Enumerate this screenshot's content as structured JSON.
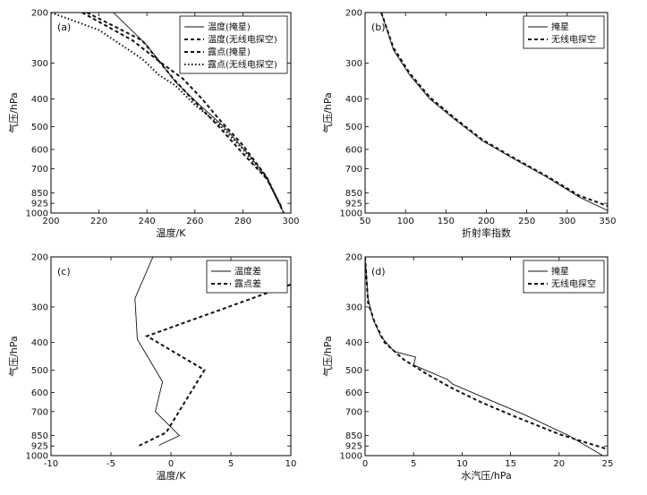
{
  "chart_data": [
    {
      "id": "a",
      "type": "line",
      "panel_label": "(a)",
      "xlabel": "温度/K",
      "ylabel": "气压/hPa",
      "xlim": [
        200,
        300
      ],
      "ylim": [
        200,
        1000
      ],
      "y_scale": "log",
      "xticks": [
        200,
        220,
        240,
        260,
        280,
        300
      ],
      "yticks": [
        200,
        300,
        400,
        500,
        600,
        700,
        850,
        925,
        1000
      ],
      "legend_position": "top-right",
      "series": [
        {
          "name": "温度(掩星)",
          "style": "solid",
          "x": [
            226,
            240,
            252,
            262,
            272,
            282,
            290,
            297
          ],
          "y": [
            200,
            260,
            350,
            420,
            500,
            620,
            750,
            1000
          ]
        },
        {
          "name": "温度(无线电探空)",
          "style": "dashed",
          "x": [
            215,
            238,
            251,
            260,
            270,
            280,
            290,
            296
          ],
          "y": [
            200,
            250,
            340,
            410,
            500,
            620,
            760,
            950
          ]
        },
        {
          "name": "露点(掩星)",
          "style": "dashed",
          "x": [
            213,
            234,
            246,
            255,
            263,
            270,
            280,
            290,
            297
          ],
          "y": [
            200,
            250,
            300,
            340,
            400,
            470,
            580,
            750,
            1000
          ]
        },
        {
          "name": "露点(无线电探空)",
          "style": "dotted",
          "x": [
            200,
            220,
            238,
            245,
            252,
            260,
            270,
            280,
            290,
            296
          ],
          "y": [
            200,
            230,
            290,
            330,
            360,
            420,
            490,
            600,
            760,
            950
          ]
        }
      ]
    },
    {
      "id": "b",
      "type": "line",
      "panel_label": "(b)",
      "xlabel": "折射率指数",
      "ylabel": "气压/hPa",
      "xlim": [
        50,
        350
      ],
      "ylim": [
        200,
        1000
      ],
      "y_scale": "log",
      "xticks": [
        50,
        100,
        150,
        200,
        250,
        300,
        350
      ],
      "yticks": [
        200,
        300,
        400,
        500,
        600,
        700,
        850,
        925,
        1000
      ],
      "legend_position": "top-right",
      "series": [
        {
          "name": "掩星",
          "style": "solid",
          "x": [
            70,
            85,
            105,
            130,
            160,
            195,
            235,
            275,
            315,
            350
          ],
          "y": [
            200,
            270,
            330,
            400,
            470,
            560,
            650,
            750,
            880,
            980
          ]
        },
        {
          "name": "无线电探空",
          "style": "dashed",
          "x": [
            70,
            85,
            105,
            130,
            160,
            195,
            235,
            275,
            315,
            350
          ],
          "y": [
            200,
            265,
            325,
            395,
            465,
            555,
            645,
            745,
            870,
            945
          ]
        }
      ]
    },
    {
      "id": "c",
      "type": "line",
      "panel_label": "(c)",
      "xlabel": "温度/K",
      "ylabel": "气压/hPa",
      "xlim": [
        -10,
        10
      ],
      "ylim": [
        200,
        1000
      ],
      "y_scale": "log",
      "xticks": [
        -10,
        -5,
        0,
        5,
        10
      ],
      "yticks": [
        200,
        300,
        400,
        500,
        600,
        700,
        850,
        925,
        1000
      ],
      "legend_position": "top-right",
      "series": [
        {
          "name": "温度差",
          "style": "solid",
          "x": [
            -1.5,
            -3.0,
            -2.8,
            -0.7,
            -1.3,
            0.7,
            -1.0
          ],
          "y": [
            200,
            280,
            390,
            550,
            700,
            850,
            920
          ]
        },
        {
          "name": "露点差",
          "style": "dashed",
          "x": [
            10,
            -2.0,
            2.8,
            -0.4,
            -2.7
          ],
          "y": [
            250,
            380,
            500,
            830,
            925
          ]
        }
      ]
    },
    {
      "id": "d",
      "type": "line",
      "panel_label": "(d)",
      "xlabel": "水汽压/hPa",
      "ylabel": "气压/hPa",
      "xlim": [
        0,
        25
      ],
      "ylim": [
        200,
        1000
      ],
      "y_scale": "log",
      "xticks": [
        0,
        5,
        10,
        15,
        20,
        25
      ],
      "yticks": [
        200,
        300,
        400,
        500,
        600,
        700,
        850,
        925,
        1000
      ],
      "legend_position": "top-right",
      "series": [
        {
          "name": "掩星",
          "style": "solid",
          "x": [
            0,
            0.3,
            0.8,
            1.6,
            3.0,
            5.2,
            5.0,
            8.5,
            9.0,
            12.5,
            16.5,
            21.0,
            24.5
          ],
          "y": [
            200,
            280,
            330,
            380,
            430,
            450,
            480,
            540,
            560,
            630,
            720,
            850,
            1000
          ]
        },
        {
          "name": "无线电探空",
          "style": "dashed",
          "x": [
            0,
            0.3,
            1.0,
            2.0,
            4.0,
            6.5,
            9.0,
            12.0,
            15.5,
            20.0,
            25.0
          ],
          "y": [
            200,
            290,
            340,
            400,
            460,
            520,
            580,
            650,
            730,
            840,
            950
          ]
        }
      ]
    }
  ]
}
